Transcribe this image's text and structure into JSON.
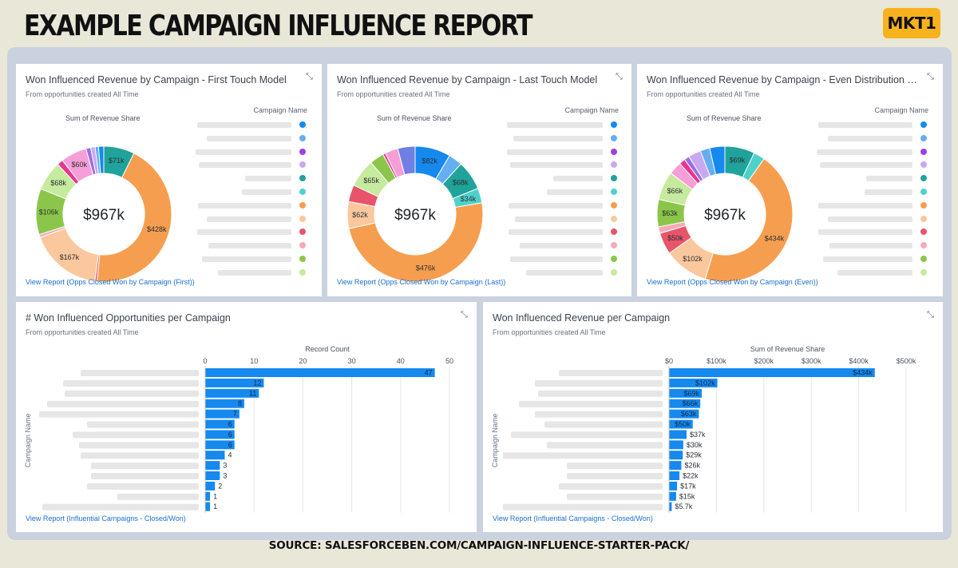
{
  "header": {
    "title": "EXAMPLE CAMPAIGN INFLUENCE REPORT",
    "brand": "MKT1"
  },
  "footer": {
    "source": "SOURCE: SALESFORCEBEN.COM/CAMPAIGN-INFLUENCE-STARTER-PACK/"
  },
  "icons": {
    "expand": "expand-arrows-icon"
  },
  "colors": {
    "background": "#e9e7d8",
    "dashboard": "#c9d2de",
    "brand": "#f7b21e",
    "link": "#1a6fd0",
    "bar": "#1589ee"
  },
  "donuts": [
    {
      "title": "Won Influenced Revenue by Campaign - First Touch Model",
      "subtitle": "From opportunities created All Time",
      "sum_label": "Sum of Revenue Share",
      "legend_header": "Campaign Name",
      "link": "View Report (Opps Closed Won by Campaign (First))",
      "total": "$967k",
      "chart_data": {
        "type": "pie",
        "values": [
          71,
          428,
          5,
          167,
          7,
          106,
          68,
          14,
          60,
          11,
          10,
          8,
          12
        ],
        "labels": [
          "$71k",
          "$428k",
          "",
          "$167k",
          "",
          "$106k",
          "$68k",
          "",
          "$60k",
          "",
          "",
          "",
          ""
        ],
        "colors": [
          "#1fa39a",
          "#f69e4f",
          "#e8556a",
          "#fbc79c",
          "#f7a9b9",
          "#8bc64a",
          "#c6ea9e",
          "#e6378e",
          "#f59ed7",
          "#9c6fe3",
          "#c8a8f2",
          "#64aef1",
          "#1589ee"
        ]
      }
    },
    {
      "title": "Won Influenced Revenue by Campaign - Last Touch Model",
      "subtitle": "From opportunities created All Time",
      "sum_label": "Sum of Revenue Share",
      "legend_header": "Campaign Name",
      "link": "View Report (Opps Closed Won by Campaign (Last))",
      "total": "$967k",
      "chart_data": {
        "type": "pie",
        "values": [
          82,
          32,
          68,
          34,
          476,
          62,
          39,
          65,
          33,
          6,
          30,
          40
        ],
        "labels": [
          "$82k",
          "",
          "$68k",
          "$34k",
          "$476k",
          "$62k",
          "",
          "$65k",
          "",
          "",
          "",
          ""
        ],
        "colors": [
          "#1589ee",
          "#64aef1",
          "#1fa39a",
          "#4fd1cb",
          "#f69e4f",
          "#fbc79c",
          "#e8556a",
          "#c6ea9e",
          "#8bc64a",
          "#e6378e",
          "#f59ed7",
          "#6f7fe3"
        ]
      }
    },
    {
      "title": "Won Influenced Revenue by Campaign - Even Distribution Model",
      "subtitle": "From opportunities created All Time",
      "sum_label": "Sum of Revenue Share",
      "legend_header": "Campaign Name",
      "link": "View Report (Opps Closed Won by Campaign (Even))",
      "total": "$967k",
      "chart_data": {
        "type": "pie",
        "values": [
          69,
          26,
          434,
          102,
          50,
          15,
          63,
          66,
          30,
          14,
          12,
          29,
          22,
          35
        ],
        "labels": [
          "$69k",
          "",
          "$434k",
          "$102k",
          "$50k",
          "",
          "$63k",
          "$66k",
          "",
          "",
          "",
          "",
          "",
          ""
        ],
        "colors": [
          "#1fa39a",
          "#4fd1cb",
          "#f69e4f",
          "#fbc79c",
          "#e8556a",
          "#f7a9b9",
          "#8bc64a",
          "#c6ea9e",
          "#f59ed7",
          "#e6378e",
          "#9c6fe3",
          "#c8a8f2",
          "#64aef1",
          "#1589ee"
        ]
      }
    }
  ],
  "legend_colors": [
    "#1589ee",
    "#64aef1",
    "#9c40e3",
    "#c8a8f2",
    "#1fa39a",
    "#4fd1cb",
    "#f69e4f",
    "#fbc79c",
    "#e8556a",
    "#f7a9b9",
    "#8bc64a",
    "#c6ea9e"
  ],
  "bars": [
    {
      "title": "# Won Influenced Opportunities per Campaign",
      "subtitle": "From opportunities created All Time",
      "link": "View Report (Influential Campaigns - Closed/Won)",
      "chart_data": {
        "type": "bar",
        "orientation": "horizontal",
        "xlabel": "Record Count",
        "ylabel": "Campaign Name",
        "xlim": [
          0,
          50
        ],
        "ticks": [
          0,
          10,
          20,
          30,
          40,
          50
        ],
        "tick_labels": [
          "0",
          "10",
          "20",
          "30",
          "40",
          "50"
        ],
        "values": [
          47,
          12,
          11,
          8,
          7,
          6,
          6,
          6,
          4,
          3,
          3,
          2,
          1,
          1
        ],
        "labels": [
          "47",
          "12",
          "11",
          "8",
          "7",
          "6",
          "6",
          "6",
          "4",
          "3",
          "3",
          "2",
          "1",
          "1"
        ]
      }
    },
    {
      "title": "Won Influenced Revenue per Campaign",
      "subtitle": "From opportunities created All Time",
      "link": "View Report (Influential Campaigns - Closed/Won)",
      "chart_data": {
        "type": "bar",
        "orientation": "horizontal",
        "xlabel": "Sum of Revenue Share",
        "ylabel": "Campaign Name",
        "xlim": [
          0,
          500
        ],
        "ticks": [
          0,
          100,
          200,
          300,
          400,
          500
        ],
        "tick_labels": [
          "$0",
          "$100k",
          "$200k",
          "$300k",
          "$400k",
          "$500k"
        ],
        "values": [
          434,
          102,
          69,
          66,
          63,
          50,
          37,
          30,
          29,
          26,
          22,
          17,
          15,
          5.7
        ],
        "labels": [
          "$434k",
          "$102k",
          "$69k",
          "$66k",
          "$63k",
          "$50k",
          "$37k",
          "$30k",
          "$29k",
          "$26k",
          "$22k",
          "$17k",
          "$15k",
          "$5.7k"
        ]
      }
    }
  ]
}
